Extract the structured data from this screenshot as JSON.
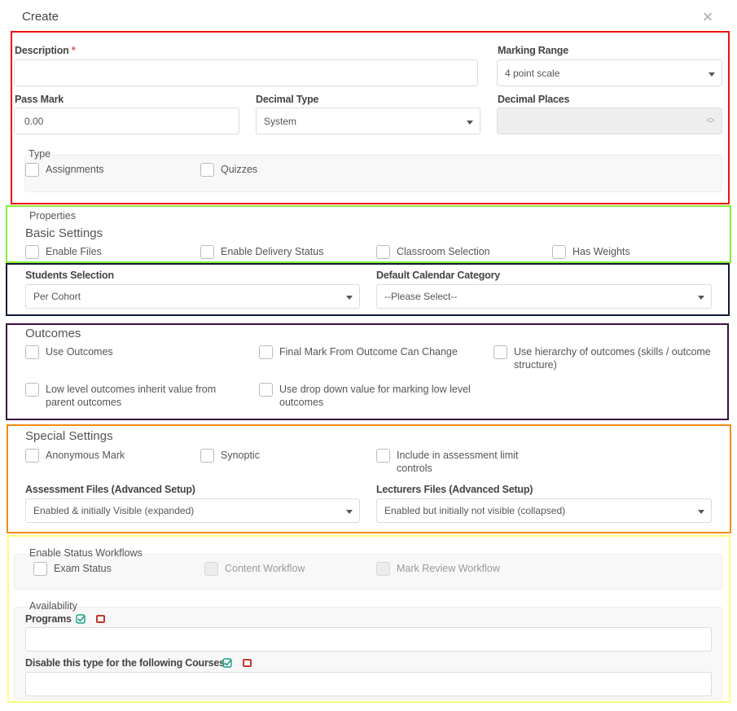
{
  "dialog": {
    "title": "Create",
    "close_symbol": "×"
  },
  "general": {
    "description_label": "Description",
    "required_mark": "*",
    "description_value": "",
    "marking_range_label": "Marking Range",
    "marking_range_value": "4 point scale",
    "pass_mark_label": "Pass Mark",
    "pass_mark_value": "0.00",
    "decimal_type_label": "Decimal Type",
    "decimal_type_value": "System",
    "decimal_places_label": "Decimal Places",
    "decimal_places_value": "",
    "type_legend": "Type",
    "type_options": [
      {
        "label": "Assignments",
        "checked": false
      },
      {
        "label": "Quizzes",
        "checked": false
      }
    ]
  },
  "properties": {
    "legend": "Properties",
    "basic_title": "Basic Settings",
    "options": [
      {
        "label": "Enable Files",
        "checked": false
      },
      {
        "label": "Enable Delivery Status",
        "checked": false
      },
      {
        "label": "Classroom Selection",
        "checked": false
      },
      {
        "label": "Has Weights",
        "checked": false
      }
    ]
  },
  "selection": {
    "students_label": "Students Selection",
    "students_value": "Per Cohort",
    "calendar_label": "Default Calendar Category",
    "calendar_value": "--Please Select--"
  },
  "outcomes": {
    "title": "Outcomes",
    "options": [
      {
        "label": "Use Outcomes",
        "checked": false
      },
      {
        "label": "Final Mark From Outcome Can Change",
        "checked": false
      },
      {
        "label": "Use hierarchy of outcomes (skills / outcome structure)",
        "checked": false
      },
      {
        "label": "Low level outcomes inherit value from parent outcomes",
        "checked": false
      },
      {
        "label": "Use drop down value for marking low level outcomes",
        "checked": false
      }
    ]
  },
  "special": {
    "title": "Special Settings",
    "options": [
      {
        "label": "Anonymous Mark",
        "checked": false
      },
      {
        "label": "Synoptic",
        "checked": false
      },
      {
        "label": "Include in assessment limit controls",
        "checked": false
      }
    ],
    "assessment_files_label": "Assessment Files (Advanced Setup)",
    "assessment_files_value": "Enabled & initially Visible (expanded)",
    "lecturers_files_label": "Lecturers Files (Advanced Setup)",
    "lecturers_files_value": "Enabled but initially not visible (collapsed)"
  },
  "workflows": {
    "legend": "Enable Status Workflows",
    "options": [
      {
        "label": "Exam Status",
        "checked": false,
        "disabled": false
      },
      {
        "label": "Content Workflow",
        "checked": false,
        "disabled": true
      },
      {
        "label": "Mark Review Workflow",
        "checked": false,
        "disabled": true
      }
    ]
  },
  "availability": {
    "legend": "Availability",
    "programs_label": "Programs",
    "programs_value": "",
    "courses_label": "Disable this type for the following Courses",
    "courses_value": ""
  },
  "colors": {
    "frame_general": "#ee1111",
    "frame_properties": "#88ee33",
    "frame_selection": "#0f1a3a",
    "frame_outcomes": "#3a0f3f",
    "frame_special": "#f38b12",
    "frame_availability": "#fdfd80",
    "check_all": "#1aa58a",
    "clear_all": "#c0392b"
  }
}
